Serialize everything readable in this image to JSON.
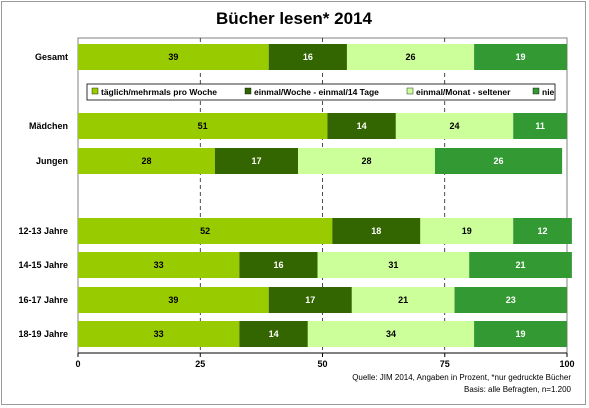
{
  "chart_data": {
    "type": "bar",
    "orientation": "horizontal",
    "stacked": true,
    "title": "Bücher lesen* 2014",
    "categories": [
      "Gesamt",
      "Mädchen",
      "Jungen",
      "12-13 Jahre",
      "14-15 Jahre",
      "16-17 Jahre",
      "18-19 Jahre"
    ],
    "series": [
      {
        "name": "täglich/mehrmals pro Woche",
        "color": "#99cc00",
        "values": [
          39,
          51,
          28,
          52,
          33,
          39,
          33
        ]
      },
      {
        "name": "einmal/Woche - einmal/14 Tage",
        "color": "#336600",
        "values": [
          16,
          14,
          17,
          18,
          16,
          17,
          14
        ]
      },
      {
        "name": "einmal/Monat - seltener",
        "color": "#ccff99",
        "values": [
          26,
          24,
          28,
          19,
          31,
          21,
          34
        ]
      },
      {
        "name": "nie",
        "color": "#339933",
        "values": [
          19,
          11,
          26,
          12,
          21,
          23,
          19
        ]
      }
    ],
    "xlim": [
      0,
      100
    ],
    "xticks": [
      0,
      25,
      50,
      75,
      100
    ],
    "grid": true,
    "legend_position": "inside-top"
  },
  "source_lines": [
    "Quelle: JIM 2014, Angaben in Prozent, *nur gedruckte Bücher",
    "Basis: alle Befragten, n=1.200"
  ]
}
